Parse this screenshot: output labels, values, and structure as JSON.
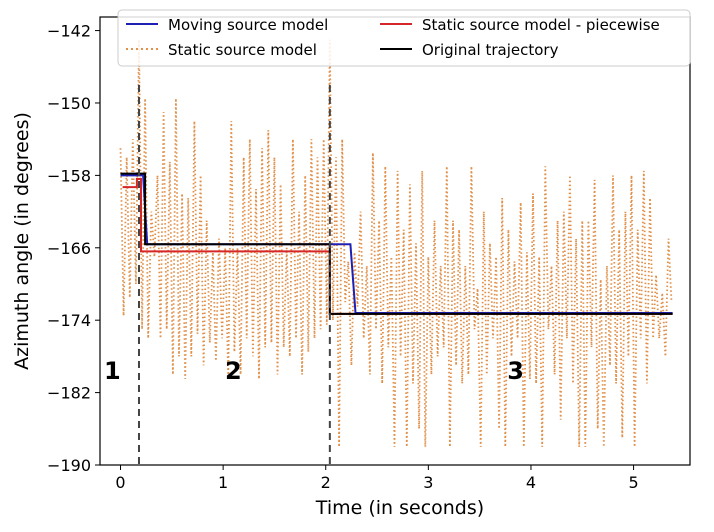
{
  "chart_data": {
    "type": "line",
    "xlabel": "Time (in seconds)",
    "ylabel": "Azimuth angle (in degrees)",
    "xlim": [
      -0.2,
      5.55
    ],
    "ylim": [
      -190,
      -140.5
    ],
    "xticks": [
      0,
      1,
      2,
      3,
      4,
      5
    ],
    "yticks": [
      -190,
      -182,
      -174,
      -166,
      -158,
      -150,
      -142
    ],
    "grid": false,
    "legend_position": "top",
    "legend": [
      {
        "label": "Moving source model",
        "color": "#1f1fb4",
        "style": "solid"
      },
      {
        "label": "Static source model",
        "color": "#e0904a",
        "style": "dotted"
      },
      {
        "label": "Static source model - piecewise",
        "color": "#d62728",
        "style": "solid"
      },
      {
        "label": "Original trajectory",
        "color": "#000000",
        "style": "solid"
      }
    ],
    "vlines": [
      0.18,
      2.04
    ],
    "segment_labels": [
      {
        "text": "1",
        "x": -0.08,
        "y": -180.5
      },
      {
        "text": "2",
        "x": 1.1,
        "y": -180.5
      },
      {
        "text": "3",
        "x": 3.85,
        "y": -180.5
      }
    ],
    "series": [
      {
        "name": "Original trajectory",
        "color": "#000000",
        "x": [
          0.0,
          0.24,
          0.24,
          2.04,
          2.04,
          5.38
        ],
        "y": [
          -157.8,
          -157.8,
          -165.6,
          -165.6,
          -173.3,
          -173.3
        ]
      },
      {
        "name": "Moving source model",
        "color": "#1f1fb4",
        "x": [
          0.0,
          0.22,
          0.26,
          2.04,
          2.05,
          2.24,
          2.29,
          5.38
        ],
        "y": [
          -158.0,
          -158.0,
          -165.6,
          -165.6,
          -165.6,
          -165.6,
          -173.2,
          -173.2
        ]
      },
      {
        "name": "Static source model - piecewise",
        "color": "#d62728",
        "x": [
          0.02,
          0.16,
          0.16,
          0.2,
          0.2,
          2.02,
          2.04,
          2.04,
          5.38
        ],
        "y": [
          -159.3,
          -159.3,
          -158.4,
          -158.4,
          -166.4,
          -166.4,
          -166.4,
          -173.3,
          -173.3
        ]
      },
      {
        "name": "Static source model",
        "color": "#e0904a",
        "x": [
          0.0,
          0.03,
          0.06,
          0.09,
          0.12,
          0.15,
          0.18,
          0.21,
          0.24,
          0.27,
          0.3,
          0.33,
          0.36,
          0.39,
          0.42,
          0.45,
          0.48,
          0.51,
          0.54,
          0.57,
          0.6,
          0.63,
          0.66,
          0.69,
          0.72,
          0.75,
          0.78,
          0.81,
          0.84,
          0.87,
          0.9,
          0.93,
          0.96,
          0.99,
          1.02,
          1.05,
          1.08,
          1.11,
          1.14,
          1.17,
          1.2,
          1.23,
          1.26,
          1.29,
          1.32,
          1.35,
          1.38,
          1.41,
          1.44,
          1.47,
          1.5,
          1.53,
          1.56,
          1.59,
          1.62,
          1.65,
          1.68,
          1.71,
          1.74,
          1.77,
          1.8,
          1.83,
          1.86,
          1.89,
          1.92,
          1.95,
          1.98,
          2.01,
          2.04,
          2.07,
          2.1,
          2.13,
          2.16,
          2.19,
          2.22,
          2.25,
          2.28,
          2.31,
          2.34,
          2.37,
          2.4,
          2.43,
          2.46,
          2.49,
          2.52,
          2.55,
          2.58,
          2.61,
          2.64,
          2.67,
          2.7,
          2.73,
          2.76,
          2.79,
          2.82,
          2.85,
          2.88,
          2.91,
          2.94,
          2.97,
          3.0,
          3.03,
          3.06,
          3.09,
          3.12,
          3.15,
          3.18,
          3.21,
          3.24,
          3.27,
          3.3,
          3.33,
          3.36,
          3.39,
          3.42,
          3.45,
          3.48,
          3.51,
          3.54,
          3.57,
          3.6,
          3.63,
          3.66,
          3.69,
          3.72,
          3.75,
          3.78,
          3.81,
          3.84,
          3.87,
          3.9,
          3.93,
          3.96,
          3.99,
          4.02,
          4.05,
          4.08,
          4.11,
          4.14,
          4.17,
          4.2,
          4.23,
          4.26,
          4.29,
          4.32,
          4.35,
          4.38,
          4.41,
          4.44,
          4.47,
          4.5,
          4.53,
          4.56,
          4.59,
          4.62,
          4.65,
          4.68,
          4.71,
          4.74,
          4.77,
          4.8,
          4.83,
          4.86,
          4.89,
          4.92,
          4.95,
          4.98,
          5.01,
          5.04,
          5.07,
          5.1,
          5.13,
          5.16,
          5.19,
          5.22,
          5.25,
          5.28,
          5.31,
          5.34,
          5.37
        ],
        "y": [
          -155.0,
          -173.5,
          -156.0,
          -171.5,
          -154.0,
          -170.0,
          -143.0,
          -175.0,
          -149.5,
          -176.0,
          -162.0,
          -167.0,
          -158.0,
          -176.0,
          -151.0,
          -175.0,
          -156.5,
          -180.0,
          -149.5,
          -178.0,
          -160.0,
          -180.5,
          -160.5,
          -178.0,
          -152.0,
          -175.5,
          -158.0,
          -179.0,
          -163.0,
          -176.5,
          -166.5,
          -178.5,
          -165.0,
          -176.0,
          -166.0,
          -180.5,
          -152.0,
          -177.5,
          -166.0,
          -180.0,
          -156.0,
          -176.0,
          -154.0,
          -178.0,
          -159.5,
          -180.5,
          -155.0,
          -177.0,
          -153.0,
          -176.5,
          -156.0,
          -180.0,
          -159.0,
          -177.0,
          -166.0,
          -178.0,
          -154.0,
          -176.0,
          -162.0,
          -180.0,
          -158.0,
          -177.5,
          -154.0,
          -176.0,
          -156.0,
          -175.0,
          -154.0,
          -174.5,
          -143.0,
          -174.0,
          -156.0,
          -188.0,
          -154.0,
          -172.0,
          -167.5,
          -179.0,
          -166.5,
          -172.5,
          -162.0,
          -176.0,
          -168.0,
          -180.0,
          -155.5,
          -175.0,
          -163.0,
          -181.0,
          -157.0,
          -177.0,
          -167.0,
          -188.0,
          -157.5,
          -178.0,
          -164.0,
          -188.0,
          -159.0,
          -181.0,
          -165.5,
          -186.0,
          -157.5,
          -188.0,
          -167.0,
          -180.0,
          -163.0,
          -178.0,
          -168.0,
          -177.0,
          -157.0,
          -188.0,
          -163.0,
          -179.0,
          -164.0,
          -181.0,
          -168.0,
          -180.0,
          -157.0,
          -175.0,
          -170.5,
          -188.0,
          -162.0,
          -180.0,
          -165.5,
          -176.0,
          -167.0,
          -186.0,
          -160.5,
          -188.0,
          -164.0,
          -178.0,
          -167.5,
          -176.0,
          -161.0,
          -188.0,
          -166.5,
          -180.5,
          -160.0,
          -181.0,
          -167.0,
          -188.0,
          -157.0,
          -175.0,
          -168.0,
          -180.0,
          -163.0,
          -185.0,
          -162.0,
          -176.0,
          -158.0,
          -181.0,
          -165.0,
          -188.0,
          -163.0,
          -188.0,
          -163.0,
          -177.0,
          -158.5,
          -186.0,
          -169.5,
          -188.0,
          -168.0,
          -179.0,
          -158.0,
          -181.0,
          -164.0,
          -187.0,
          -162.0,
          -178.0,
          -158.0,
          -188.0,
          -164.0,
          -176.0,
          -157.5,
          -181.0,
          -160.5,
          -176.0,
          -169.0,
          -176.0,
          -171.0,
          -178.0,
          -165.0,
          -172.0
        ]
      }
    ]
  }
}
